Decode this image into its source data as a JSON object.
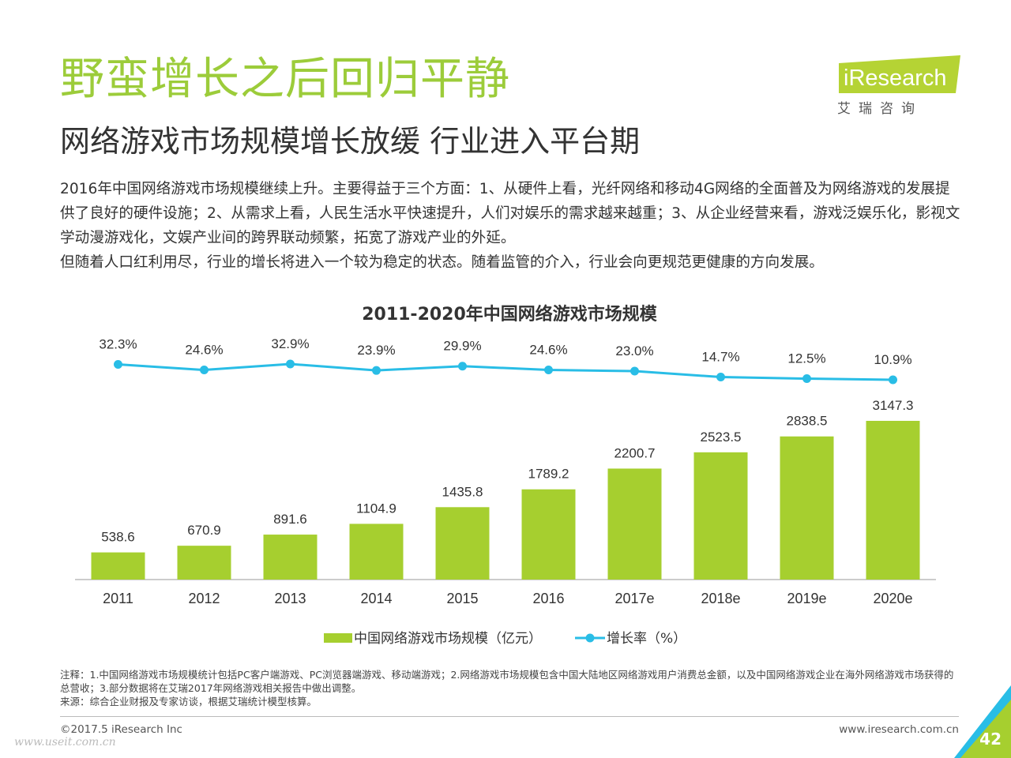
{
  "header": {
    "title": "野蛮增长之后回归平静",
    "subtitle": "网络游戏市场规模增长放缓  行业进入平台期"
  },
  "logo": {
    "brand": "iResearch",
    "brand_cn": "艾 瑞 咨 询"
  },
  "body": {
    "paragraph1": "2016年中国网络游戏市场规模继续上升。主要得益于三个方面：1、从硬件上看，光纤网络和移动4G网络的全面普及为网络游戏的发展提供了良好的硬件设施；2、从需求上看，人民生活水平快速提升，人们对娱乐的需求越来越重；3、从企业经营来看，游戏泛娱乐化，影视文学动漫游戏化，文娱产业间的跨界联动频繁，拓宽了游戏产业的外延。",
    "paragraph2": "但随着人口红利用尽，行业的增长将进入一个较为稳定的状态。随着监管的介入，行业会向更规范更健康的方向发展。"
  },
  "chart_data": {
    "type": "bar",
    "title": "2011-2020年中国网络游戏市场规模",
    "categories": [
      "2011",
      "2012",
      "2013",
      "2014",
      "2015",
      "2016",
      "2017e",
      "2018e",
      "2019e",
      "2020e"
    ],
    "series": [
      {
        "name": "中国网络游戏市场规模（亿元）",
        "type": "bar",
        "color": "#a6cf2f",
        "values": [
          538.6,
          670.9,
          891.6,
          1104.9,
          1435.8,
          1789.2,
          2200.7,
          2523.5,
          2838.5,
          3147.3
        ],
        "labels": [
          "538.6",
          "670.9",
          "891.6",
          "1104.9",
          "1435.8",
          "1789.2",
          "2200.7",
          "2523.5",
          "2838.5",
          "3147.3"
        ]
      },
      {
        "name": "增长率（%）",
        "type": "line",
        "color": "#29bde6",
        "values": [
          32.3,
          24.6,
          32.9,
          23.9,
          29.9,
          24.6,
          23.0,
          14.7,
          12.5,
          10.9
        ],
        "labels": [
          "32.3%",
          "24.6%",
          "32.9%",
          "23.9%",
          "29.9%",
          "24.6%",
          "23.0%",
          "14.7%",
          "12.5%",
          "10.9%"
        ]
      }
    ],
    "grid": false,
    "legend": "bottom-center"
  },
  "notes": {
    "note": "注释：1.中国网络游戏市场规模统计包括PC客户端游戏、PC浏览器端游戏、移动端游戏；2.网络游戏市场规模包含中国大陆地区网络游戏用户消费总金额，以及中国网络游戏企业在海外网络游戏市场获得的总营收；3.部分数据将在艾瑞2017年网络游戏相关报告中做出调整。",
    "source": "来源：综合企业财报及专家访谈，根据艾瑞统计模型核算。"
  },
  "footer": {
    "copyright": "©2017.5 iResearch Inc",
    "site": "www.iresearch.com.cn",
    "page": "42",
    "watermark": "www.useit.com.cn"
  }
}
